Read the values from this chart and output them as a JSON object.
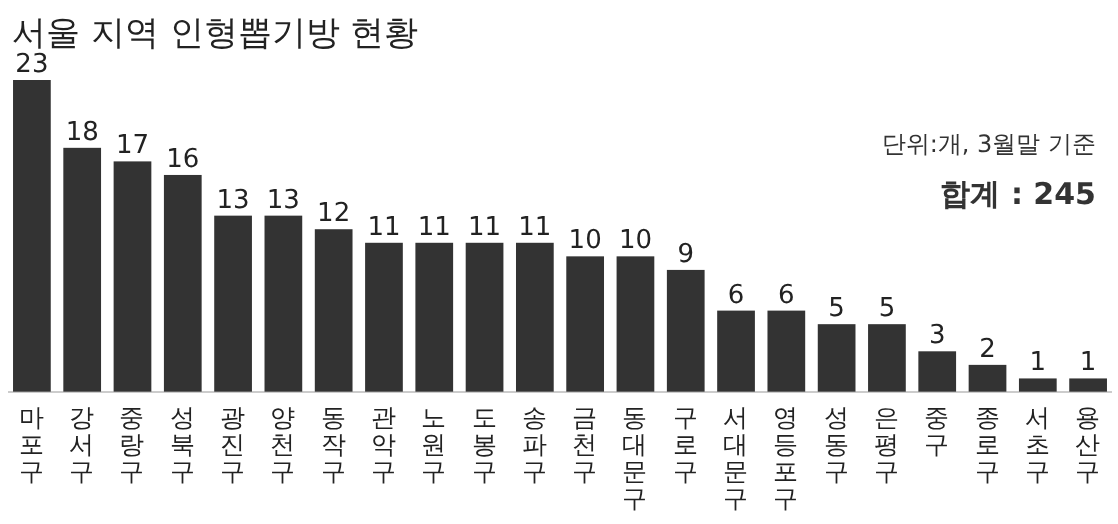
{
  "chart_data": {
    "type": "bar",
    "title": "서울 지역 인형뽑기방 현황",
    "annotations": [
      "단위:개, 3월말 기준",
      "합계 : 245"
    ],
    "categories": [
      "마포구",
      "강서구",
      "중랑구",
      "성북구",
      "광진구",
      "양천구",
      "동작구",
      "관악구",
      "노원구",
      "도봉구",
      "송파구",
      "금천구",
      "동대문구",
      "구로구",
      "서대문구",
      "영등포구",
      "성동구",
      "은평구",
      "중구",
      "종로구",
      "서초구",
      "용산구"
    ],
    "values": [
      23,
      18,
      17,
      16,
      13,
      13,
      12,
      11,
      11,
      11,
      11,
      10,
      10,
      9,
      6,
      6,
      5,
      5,
      3,
      2,
      1,
      1
    ],
    "color": "#333333",
    "data_labels": true
  }
}
